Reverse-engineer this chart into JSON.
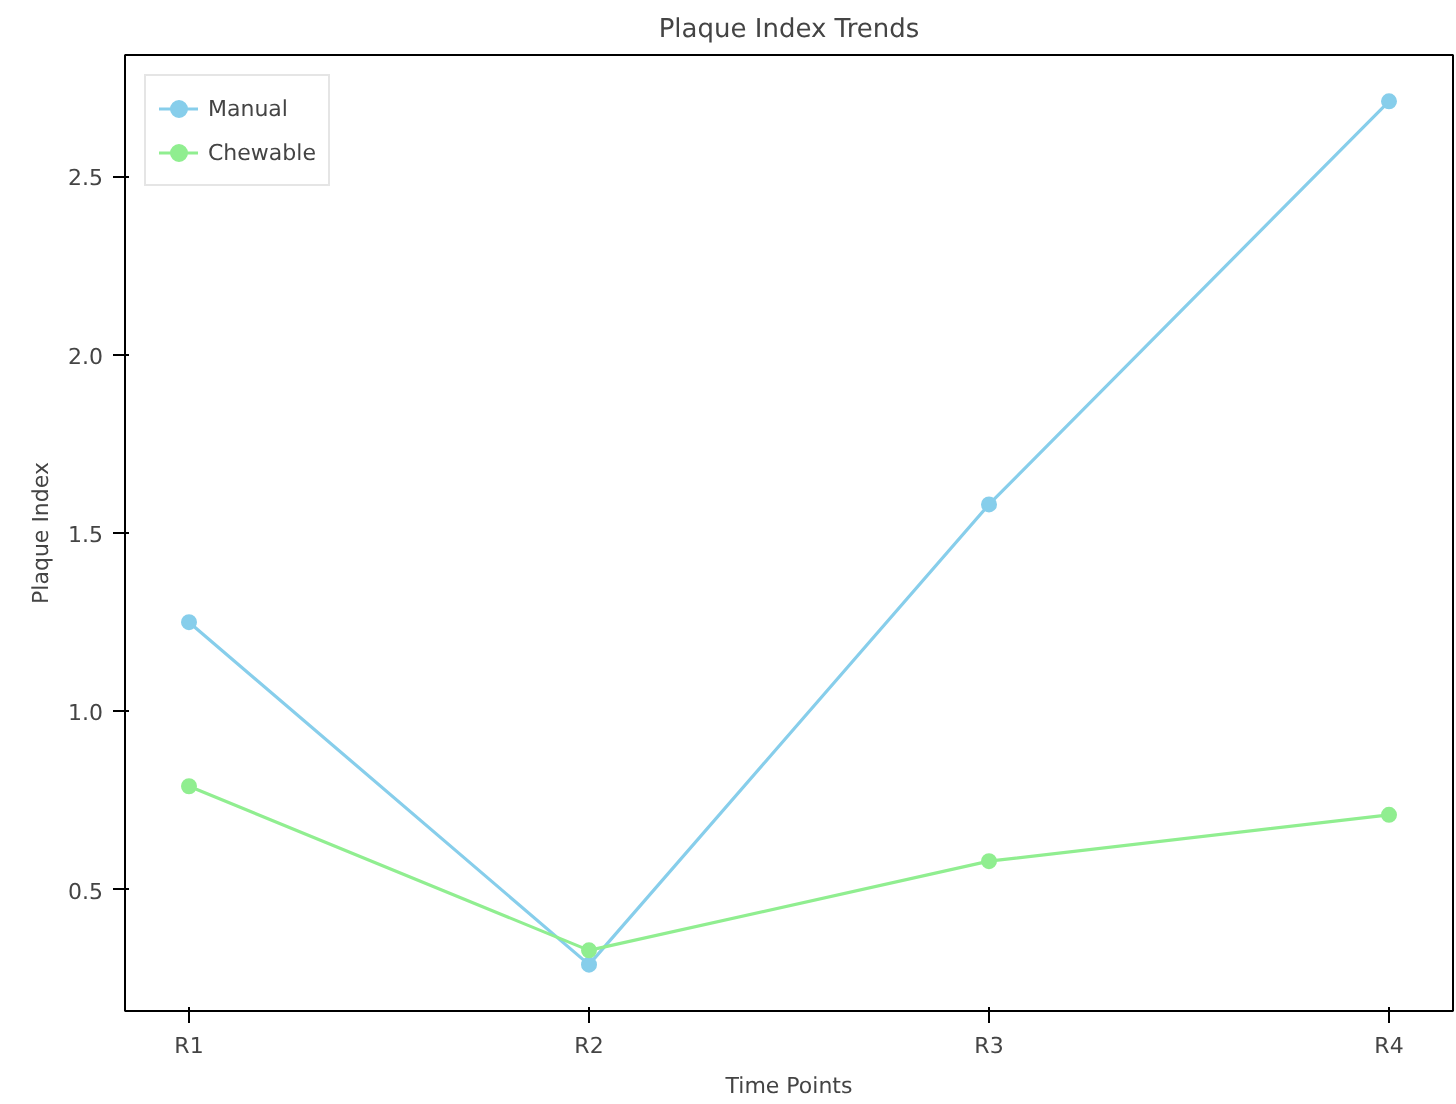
{
  "chart_data": {
    "type": "line",
    "title": "Plaque Index Trends",
    "xlabel": "Time Points",
    "ylabel": "Plaque Index",
    "categories": [
      "R1",
      "R2",
      "R3",
      "R4"
    ],
    "series": [
      {
        "name": "Manual",
        "color": "#87ceeb",
        "values": [
          1.25,
          0.29,
          1.58,
          2.71
        ]
      },
      {
        "name": "Chewable",
        "color": "#90ee90",
        "values": [
          0.79,
          0.33,
          0.58,
          0.71
        ]
      }
    ],
    "ylim": [
      0.16,
      2.84
    ],
    "yticks": [
      {
        "value": 0.5,
        "label": "0.5"
      },
      {
        "value": 1.0,
        "label": "1.0"
      },
      {
        "value": 1.5,
        "label": "1.5"
      },
      {
        "value": 2.0,
        "label": "2.0"
      },
      {
        "value": 2.5,
        "label": "2.5"
      }
    ],
    "grid": false,
    "legend": "top left",
    "marker": "circle",
    "line_style": "solid"
  }
}
